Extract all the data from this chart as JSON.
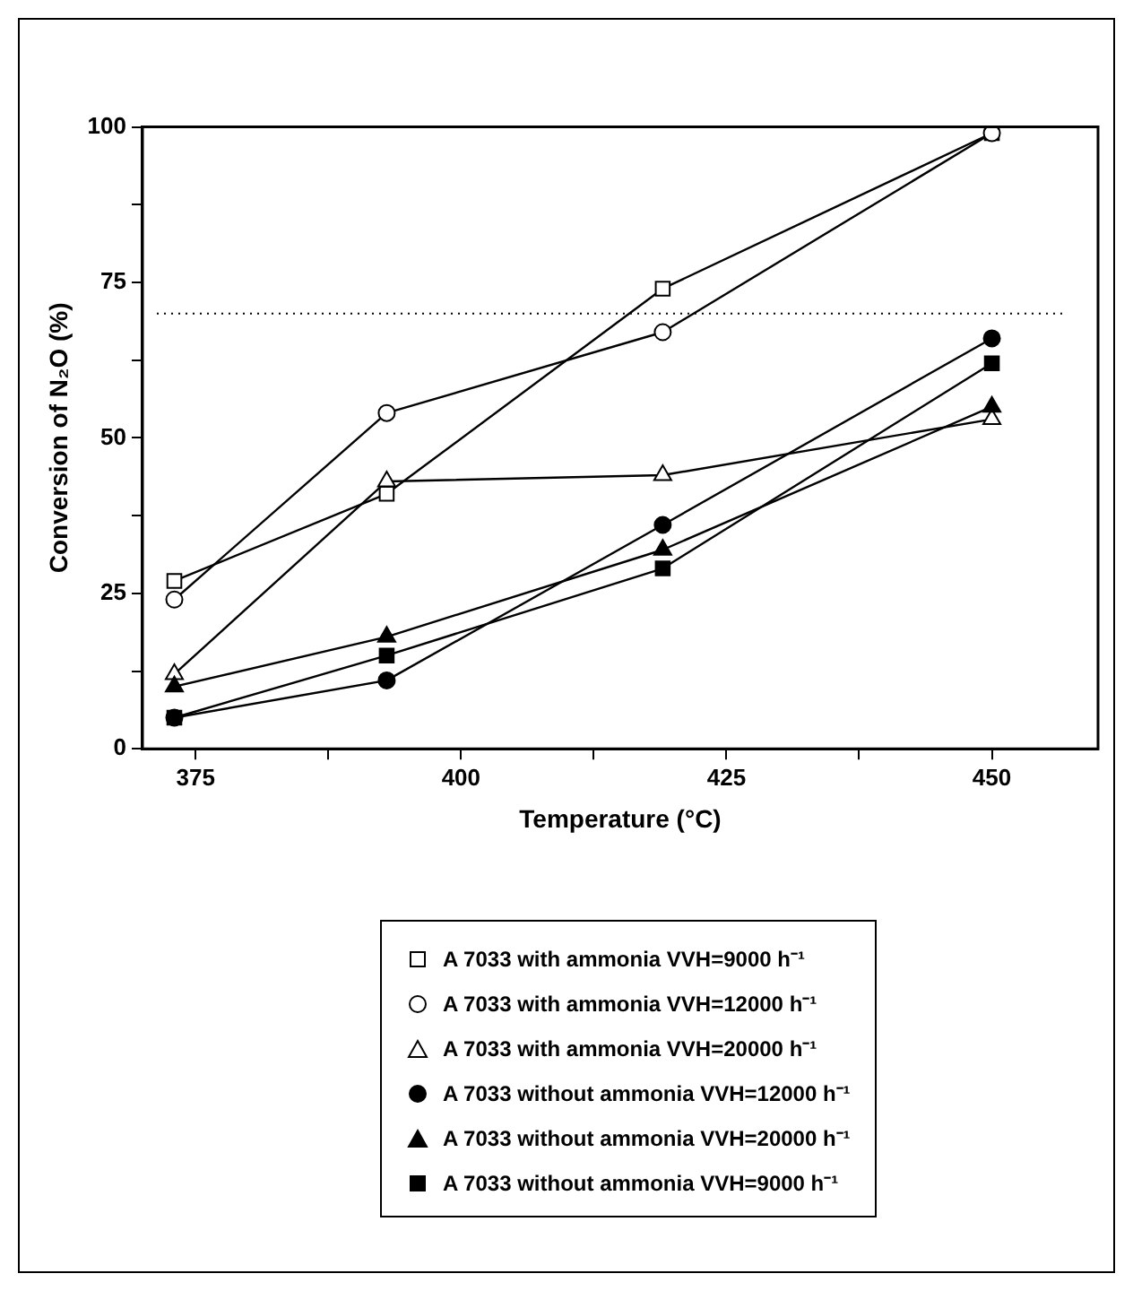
{
  "chart_data": {
    "type": "line",
    "xlabel": "Temperature (°C)",
    "ylabel": "Conversion of N₂O (%)",
    "x": [
      373,
      393,
      419,
      450
    ],
    "xlim": [
      370,
      460
    ],
    "xticks": [
      375,
      {
        "value": 387.5,
        "label": null
      },
      400,
      {
        "value": 412.5,
        "label": null
      },
      425,
      {
        "value": 437.5,
        "label": null
      },
      450
    ],
    "ylim": [
      0,
      100
    ],
    "yticks": [
      0,
      {
        "value": 12.5,
        "label": null
      },
      25,
      {
        "value": 37.5,
        "label": null
      },
      50,
      {
        "value": 62.5,
        "label": null
      },
      75,
      {
        "value": 87.5,
        "label": null
      },
      100
    ],
    "grid": false,
    "legend": "bottom",
    "line_style": "solid",
    "ref_lines": [
      {
        "axis": "y",
        "value": 70,
        "label": null,
        "color": "#000000",
        "line_style": "dotted"
      }
    ],
    "series": [
      {
        "name": "A 7033 with ammonia VVH=9000 h⁻¹",
        "color": "#000000",
        "marker": "square",
        "colors": [
          "#ffffff",
          "#ffffff",
          "#ffffff",
          "#ffffff"
        ],
        "values": [
          27,
          41,
          74,
          99
        ]
      },
      {
        "name": "A 7033 with ammonia VVH=12000 h⁻¹",
        "color": "#000000",
        "marker": "circle",
        "colors": [
          "#ffffff",
          "#ffffff",
          "#ffffff",
          "#ffffff"
        ],
        "values": [
          24,
          54,
          67,
          99
        ]
      },
      {
        "name": "A 7033 with ammonia VVH=20000 h⁻¹",
        "color": "#000000",
        "marker": "triangle",
        "colors": [
          "#ffffff",
          "#ffffff",
          "#ffffff",
          "#ffffff"
        ],
        "values": [
          12,
          43,
          44,
          53
        ]
      },
      {
        "name": "A 7033 without ammonia VVH=12000 h⁻¹",
        "color": "#000000",
        "marker": "circle",
        "values": [
          5,
          11,
          36,
          66
        ]
      },
      {
        "name": "A 7033 without ammonia VVH=20000 h⁻¹",
        "color": "#000000",
        "marker": "triangle",
        "values": [
          10,
          18,
          32,
          55
        ]
      },
      {
        "name": "A 7033 without ammonia VVH=9000 h⁻¹",
        "color": "#000000",
        "marker": "square",
        "values": [
          5,
          15,
          29,
          62
        ]
      }
    ]
  }
}
